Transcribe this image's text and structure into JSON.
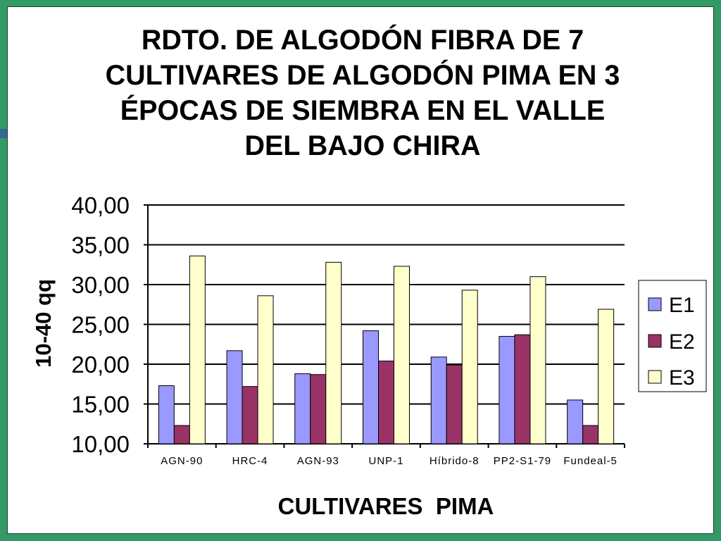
{
  "slide": {
    "frame_color": "#339966",
    "accent_color": "#336699",
    "background": "#ffffff"
  },
  "chart_data": {
    "type": "bar",
    "title": "RDTO. DE ALGODÓN FIBRA DE 7 CULTIVARES DE ALGODÓN PIMA EN 3 ÉPOCAS DE SIEMBRA EN EL VALLE DEL BAJO CHIRA",
    "xlabel": "CULTIVARES  PIMA",
    "ylabel": "10-40 qq",
    "categories": [
      "AGN-90",
      "HRC-4",
      "AGN-93",
      "UNP-1",
      "Híbrido-8",
      "PP2-S1-79",
      "Fundeal-5"
    ],
    "series": [
      {
        "name": "E1",
        "color": "#9999ff",
        "values": [
          17.3,
          21.7,
          18.8,
          24.2,
          20.9,
          23.5,
          15.5
        ]
      },
      {
        "name": "E2",
        "color": "#993366",
        "values": [
          12.3,
          17.2,
          18.7,
          20.4,
          19.9,
          23.7,
          12.3
        ]
      },
      {
        "name": "E3",
        "color": "#ffffcc",
        "values": [
          33.6,
          28.6,
          32.8,
          32.3,
          29.3,
          31.0,
          26.9
        ]
      }
    ],
    "ylim": [
      10,
      40
    ],
    "y_ticks": [
      {
        "value": 40,
        "label": "40,00"
      },
      {
        "value": 35,
        "label": "35,00"
      },
      {
        "value": 30,
        "label": "30,00"
      },
      {
        "value": 25,
        "label": "25,00"
      },
      {
        "value": 20,
        "label": "20,00"
      },
      {
        "value": 15,
        "label": "15,00"
      },
      {
        "value": 10,
        "label": "10,00"
      }
    ],
    "grid": true,
    "legend": {
      "position": "right"
    }
  }
}
